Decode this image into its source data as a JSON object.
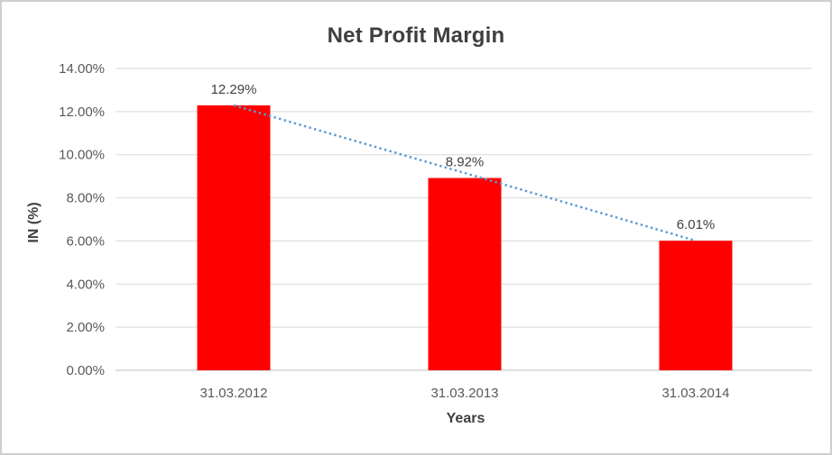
{
  "chart": {
    "title": "Net Profit Margin",
    "y_axis_title": "IN (%)",
    "x_axis_title": "Years"
  },
  "chart_data": {
    "type": "bar",
    "title": "Net Profit Margin",
    "xlabel": "Years",
    "ylabel": "IN (%)",
    "categories": [
      "31.03.2012",
      "31.03.2013",
      "31.03.2014"
    ],
    "values": [
      12.29,
      8.92,
      6.01
    ],
    "data_labels": [
      "12.29%",
      "8.92%",
      "6.01%"
    ],
    "y_tick_values": [
      0,
      2,
      4,
      6,
      8,
      10,
      12,
      14
    ],
    "y_tick_labels": [
      "0.00%",
      "2.00%",
      "4.00%",
      "6.00%",
      "8.00%",
      "10.00%",
      "12.00%",
      "14.00%"
    ],
    "ylim": [
      0,
      14
    ],
    "grid": true,
    "legend_position": "none",
    "trendline": {
      "type": "linear",
      "style": "dotted",
      "from_value": 12.29,
      "to_value": 6.01
    }
  },
  "colors": {
    "bar": "#FF0000",
    "trendline": "#5B9BD5",
    "gridline": "#D9D9D9",
    "axis_line": "#BFBFBF",
    "tick_label": "#595959",
    "data_label": "#404040",
    "title": "#3F3F3F",
    "border": "#D0CECE",
    "background": "#FFFFFF"
  }
}
